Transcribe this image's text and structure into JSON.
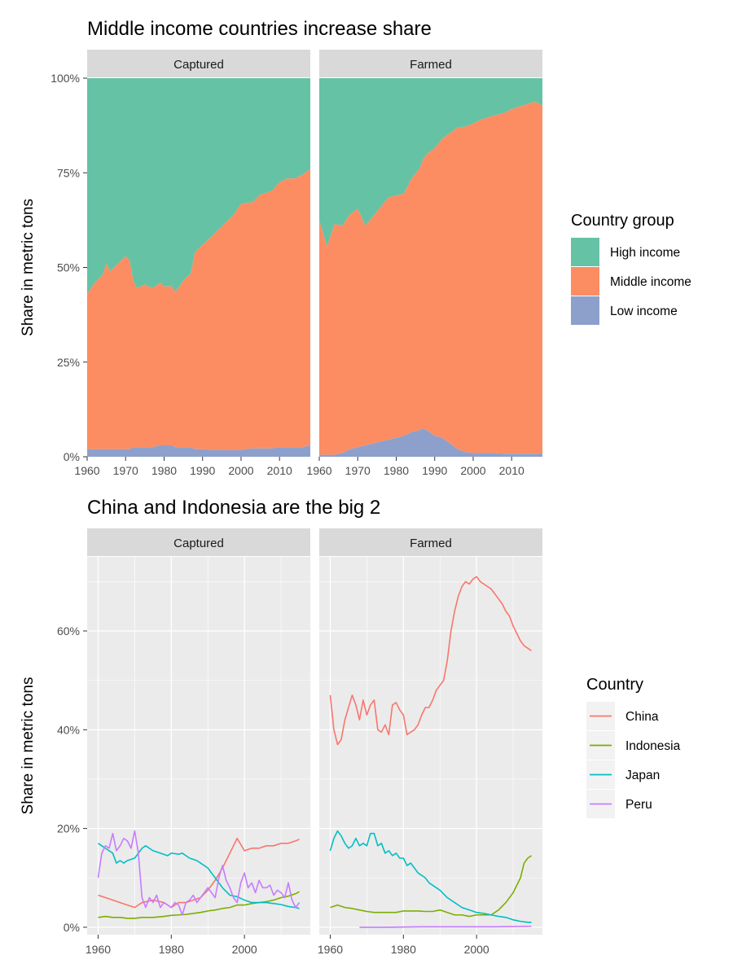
{
  "chart_data": [
    {
      "type": "area",
      "stacked": "percent",
      "title": "Middle income countries increase share",
      "xlabel": "",
      "ylabel": "Share in metric tons",
      "xlim": [
        1960,
        2018
      ],
      "ylim": [
        0,
        1
      ],
      "x_ticks": [
        1960,
        1970,
        1980,
        1990,
        2000,
        2010
      ],
      "x_tick_labels": [
        "1960",
        "1970",
        "1980",
        "1990",
        "2000",
        "2010"
      ],
      "y_ticks": [
        0,
        0.25,
        0.5,
        0.75,
        1.0
      ],
      "y_tick_labels": [
        "0%",
        "25%",
        "50%",
        "75%",
        "100%"
      ],
      "legend": {
        "title": "Country group",
        "position": "right",
        "entries": [
          {
            "label": "High income",
            "color": "#66c2a5"
          },
          {
            "label": "Middle income",
            "color": "#fc8d62"
          },
          {
            "label": "Low income",
            "color": "#8da0cb"
          }
        ]
      },
      "facets": [
        {
          "label": "Captured",
          "x": [
            1960,
            1962,
            1964,
            1965,
            1966,
            1968,
            1970,
            1971,
            1972,
            1973,
            1975,
            1977,
            1979,
            1980,
            1982,
            1983,
            1985,
            1987,
            1988,
            1990,
            1993,
            1995,
            1998,
            2000,
            2001,
            2003,
            2005,
            2008,
            2010,
            2012,
            2014,
            2016,
            2018
          ],
          "low": [
            0.02,
            0.02,
            0.02,
            0.02,
            0.02,
            0.02,
            0.02,
            0.02,
            0.025,
            0.025,
            0.025,
            0.025,
            0.03,
            0.03,
            0.03,
            0.025,
            0.025,
            0.025,
            0.02,
            0.02,
            0.018,
            0.018,
            0.018,
            0.018,
            0.02,
            0.022,
            0.022,
            0.022,
            0.025,
            0.025,
            0.025,
            0.025,
            0.03
          ],
          "middle": [
            0.41,
            0.44,
            0.46,
            0.49,
            0.47,
            0.49,
            0.51,
            0.5,
            0.44,
            0.42,
            0.43,
            0.42,
            0.43,
            0.42,
            0.42,
            0.41,
            0.44,
            0.46,
            0.52,
            0.54,
            0.57,
            0.59,
            0.62,
            0.65,
            0.65,
            0.65,
            0.67,
            0.68,
            0.7,
            0.71,
            0.71,
            0.72,
            0.73
          ]
        },
        {
          "label": "Farmed",
          "x": [
            1960,
            1962,
            1964,
            1966,
            1968,
            1970,
            1972,
            1974,
            1976,
            1978,
            1980,
            1982,
            1984,
            1986,
            1987,
            1988,
            1990,
            1992,
            1994,
            1996,
            1998,
            2000,
            2002,
            2005,
            2008,
            2010,
            2013,
            2016,
            2018
          ],
          "low": [
            0.005,
            0.005,
            0.005,
            0.01,
            0.02,
            0.025,
            0.03,
            0.035,
            0.04,
            0.045,
            0.05,
            0.055,
            0.065,
            0.07,
            0.075,
            0.07,
            0.055,
            0.05,
            0.035,
            0.02,
            0.012,
            0.01,
            0.01,
            0.01,
            0.008,
            0.008,
            0.008,
            0.008,
            0.008
          ],
          "middle": [
            0.62,
            0.55,
            0.61,
            0.6,
            0.62,
            0.63,
            0.58,
            0.6,
            0.62,
            0.64,
            0.64,
            0.64,
            0.67,
            0.69,
            0.71,
            0.73,
            0.76,
            0.79,
            0.82,
            0.85,
            0.86,
            0.87,
            0.88,
            0.89,
            0.9,
            0.91,
            0.92,
            0.93,
            0.92
          ]
        }
      ]
    },
    {
      "type": "line",
      "title": "China and Indonesia are the big 2",
      "xlabel": "",
      "ylabel": "Share in metric tons",
      "xlim": [
        1957,
        2018
      ],
      "ylim": [
        -0.015,
        0.75
      ],
      "x_ticks": [
        1960,
        1980,
        2000
      ],
      "x_tick_labels": [
        "1960",
        "1980",
        "2000"
      ],
      "y_ticks": [
        0,
        0.2,
        0.4,
        0.6
      ],
      "y_tick_labels": [
        "0%",
        "20%",
        "40%",
        "60%"
      ],
      "legend": {
        "title": "Country",
        "position": "right",
        "entries": [
          {
            "label": "China",
            "color": "#f8766d"
          },
          {
            "label": "Indonesia",
            "color": "#7cae00"
          },
          {
            "label": "Japan",
            "color": "#00bfc4"
          },
          {
            "label": "Peru",
            "color": "#c77cff"
          }
        ]
      },
      "facets": [
        {
          "label": "Captured",
          "series": [
            {
              "name": "China",
              "color": "#f8766d",
              "x": [
                1960,
                1962,
                1964,
                1966,
                1968,
                1970,
                1972,
                1975,
                1978,
                1980,
                1982,
                1984,
                1986,
                1988,
                1990,
                1992,
                1994,
                1996,
                1998,
                2000,
                2002,
                2004,
                2006,
                2008,
                2010,
                2012,
                2014,
                2015
              ],
              "y": [
                0.065,
                0.06,
                0.055,
                0.05,
                0.045,
                0.04,
                0.05,
                0.055,
                0.05,
                0.04,
                0.05,
                0.05,
                0.055,
                0.06,
                0.075,
                0.095,
                0.12,
                0.15,
                0.18,
                0.155,
                0.16,
                0.16,
                0.165,
                0.165,
                0.17,
                0.17,
                0.175,
                0.178
              ]
            },
            {
              "name": "Indonesia",
              "color": "#7cae00",
              "x": [
                1960,
                1962,
                1964,
                1966,
                1968,
                1970,
                1972,
                1975,
                1978,
                1980,
                1982,
                1984,
                1986,
                1988,
                1990,
                1992,
                1994,
                1996,
                1998,
                2000,
                2002,
                2004,
                2006,
                2008,
                2010,
                2012,
                2014,
                2015
              ],
              "y": [
                0.02,
                0.022,
                0.02,
                0.02,
                0.018,
                0.018,
                0.02,
                0.02,
                0.022,
                0.024,
                0.025,
                0.026,
                0.028,
                0.03,
                0.033,
                0.035,
                0.038,
                0.04,
                0.045,
                0.045,
                0.048,
                0.05,
                0.052,
                0.055,
                0.06,
                0.063,
                0.068,
                0.072
              ]
            },
            {
              "name": "Japan",
              "color": "#00bfc4",
              "x": [
                1960,
                1962,
                1964,
                1965,
                1966,
                1967,
                1968,
                1970,
                1972,
                1973,
                1975,
                1977,
                1979,
                1980,
                1982,
                1983,
                1985,
                1987,
                1988,
                1990,
                1992,
                1994,
                1996,
                1998,
                2000,
                2002,
                2004,
                2006,
                2008,
                2010,
                2012,
                2014,
                2015
              ],
              "y": [
                0.17,
                0.16,
                0.15,
                0.13,
                0.135,
                0.13,
                0.135,
                0.14,
                0.16,
                0.165,
                0.155,
                0.15,
                0.145,
                0.15,
                0.148,
                0.15,
                0.14,
                0.135,
                0.13,
                0.12,
                0.1,
                0.08,
                0.065,
                0.062,
                0.055,
                0.05,
                0.05,
                0.05,
                0.048,
                0.046,
                0.042,
                0.04,
                0.038
              ]
            },
            {
              "name": "Peru",
              "color": "#c77cff",
              "x": [
                1960,
                1961,
                1962,
                1963,
                1964,
                1965,
                1966,
                1967,
                1968,
                1969,
                1970,
                1971,
                1972,
                1973,
                1974,
                1975,
                1976,
                1977,
                1978,
                1979,
                1980,
                1981,
                1982,
                1983,
                1984,
                1985,
                1986,
                1987,
                1988,
                1989,
                1990,
                1991,
                1992,
                1993,
                1994,
                1995,
                1996,
                1997,
                1998,
                1999,
                2000,
                2001,
                2002,
                2003,
                2004,
                2005,
                2006,
                2007,
                2008,
                2009,
                2010,
                2011,
                2012,
                2013,
                2014,
                2015
              ],
              "y": [
                0.1,
                0.15,
                0.165,
                0.16,
                0.19,
                0.155,
                0.165,
                0.18,
                0.175,
                0.16,
                0.195,
                0.15,
                0.06,
                0.04,
                0.06,
                0.05,
                0.065,
                0.04,
                0.05,
                0.045,
                0.04,
                0.05,
                0.045,
                0.025,
                0.05,
                0.055,
                0.065,
                0.05,
                0.06,
                0.07,
                0.08,
                0.07,
                0.06,
                0.1,
                0.125,
                0.095,
                0.08,
                0.06,
                0.05,
                0.09,
                0.11,
                0.08,
                0.09,
                0.07,
                0.095,
                0.08,
                0.08,
                0.085,
                0.065,
                0.075,
                0.07,
                0.06,
                0.09,
                0.055,
                0.04,
                0.05
              ]
            }
          ]
        },
        {
          "label": "Farmed",
          "series": [
            {
              "name": "China",
              "color": "#f8766d",
              "x": [
                1960,
                1961,
                1962,
                1963,
                1964,
                1966,
                1967,
                1968,
                1969,
                1970,
                1971,
                1972,
                1973,
                1974,
                1975,
                1976,
                1977,
                1978,
                1979,
                1980,
                1981,
                1982,
                1983,
                1984,
                1985,
                1986,
                1987,
                1988,
                1989,
                1990,
                1991,
                1992,
                1993,
                1994,
                1995,
                1996,
                1997,
                1998,
                1999,
                2000,
                2001,
                2002,
                2003,
                2004,
                2005,
                2006,
                2007,
                2008,
                2009,
                2010,
                2011,
                2012,
                2013,
                2014,
                2015
              ],
              "y": [
                0.47,
                0.4,
                0.37,
                0.38,
                0.42,
                0.47,
                0.45,
                0.42,
                0.46,
                0.43,
                0.45,
                0.46,
                0.4,
                0.395,
                0.41,
                0.39,
                0.45,
                0.455,
                0.44,
                0.43,
                0.39,
                0.395,
                0.4,
                0.41,
                0.43,
                0.445,
                0.445,
                0.46,
                0.48,
                0.49,
                0.5,
                0.54,
                0.6,
                0.64,
                0.67,
                0.69,
                0.7,
                0.695,
                0.705,
                0.71,
                0.7,
                0.695,
                0.69,
                0.685,
                0.675,
                0.665,
                0.655,
                0.64,
                0.63,
                0.61,
                0.595,
                0.58,
                0.57,
                0.565,
                0.56
              ]
            },
            {
              "name": "Indonesia",
              "color": "#7cae00",
              "x": [
                1960,
                1962,
                1964,
                1966,
                1968,
                1970,
                1972,
                1974,
                1976,
                1978,
                1980,
                1982,
                1984,
                1986,
                1988,
                1990,
                1992,
                1994,
                1996,
                1998,
                2000,
                2002,
                2004,
                2006,
                2008,
                2010,
                2012,
                2013,
                2014,
                2015
              ],
              "y": [
                0.04,
                0.045,
                0.04,
                0.038,
                0.035,
                0.032,
                0.03,
                0.03,
                0.03,
                0.03,
                0.033,
                0.033,
                0.033,
                0.032,
                0.032,
                0.035,
                0.03,
                0.025,
                0.025,
                0.022,
                0.025,
                0.025,
                0.025,
                0.035,
                0.05,
                0.07,
                0.1,
                0.13,
                0.14,
                0.145
              ]
            },
            {
              "name": "Japan",
              "color": "#00bfc4",
              "x": [
                1960,
                1961,
                1962,
                1963,
                1964,
                1965,
                1966,
                1967,
                1968,
                1969,
                1970,
                1971,
                1972,
                1973,
                1974,
                1975,
                1976,
                1977,
                1978,
                1979,
                1980,
                1981,
                1982,
                1983,
                1984,
                1985,
                1986,
                1987,
                1988,
                1990,
                1992,
                1994,
                1996,
                1998,
                2000,
                2002,
                2004,
                2006,
                2008,
                2010,
                2012,
                2014,
                2015
              ],
              "y": [
                0.155,
                0.18,
                0.195,
                0.185,
                0.17,
                0.16,
                0.165,
                0.18,
                0.165,
                0.17,
                0.165,
                0.19,
                0.19,
                0.165,
                0.17,
                0.15,
                0.155,
                0.145,
                0.15,
                0.14,
                0.14,
                0.125,
                0.13,
                0.12,
                0.11,
                0.105,
                0.1,
                0.09,
                0.085,
                0.075,
                0.06,
                0.05,
                0.04,
                0.035,
                0.03,
                0.028,
                0.025,
                0.022,
                0.02,
                0.015,
                0.012,
                0.01,
                0.01
              ]
            },
            {
              "name": "Peru",
              "color": "#c77cff",
              "x": [
                1968,
                1975,
                1985,
                1995,
                2005,
                2015
              ],
              "y": [
                0.0,
                0.0,
                0.001,
                0.001,
                0.001,
                0.002
              ]
            }
          ]
        }
      ]
    }
  ]
}
